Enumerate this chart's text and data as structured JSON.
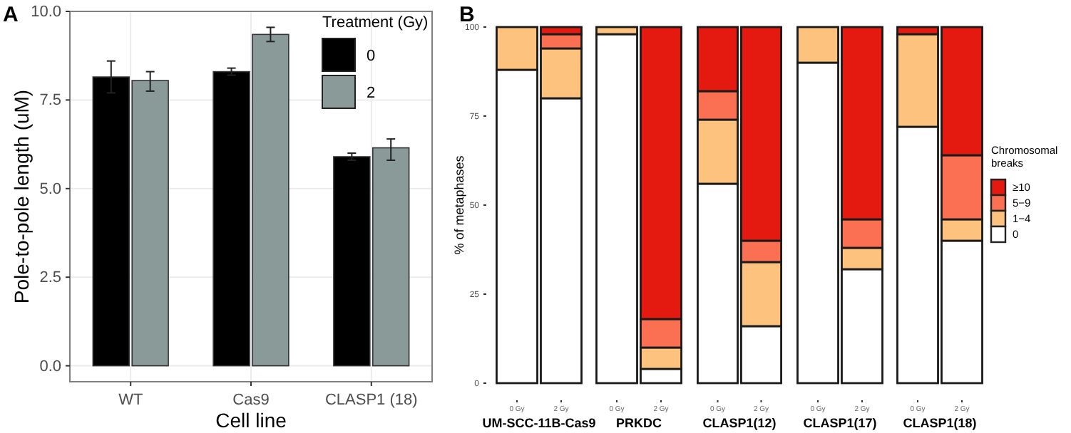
{
  "chart_data": [
    {
      "type": "bar",
      "title": "A",
      "xlabel": "Cell line",
      "ylabel": "Pole-to-pole length (uM)",
      "categories": [
        "WT",
        "Cas9",
        "CLASP1 (18)"
      ],
      "legend_title": "Treatment (Gy)",
      "legend": "top right",
      "grid": true,
      "ylim": [
        -0.45,
        10
      ],
      "yticks": [
        {
          "value": 0,
          "label": "0.0"
        },
        {
          "value": 2.5,
          "label": "2.5"
        },
        {
          "value": 5,
          "label": "5.0"
        },
        {
          "value": 7.5,
          "label": "7.5"
        },
        {
          "value": 10,
          "label": "10.0"
        }
      ],
      "series": [
        {
          "name": "0",
          "color": "#000000",
          "values": [
            8.15,
            8.3,
            5.9
          ],
          "errors": [
            [
              7.7,
              8.6
            ],
            [
              8.2,
              8.4
            ],
            [
              5.8,
              6.0
            ]
          ]
        },
        {
          "name": "2",
          "color": "#8a9a99",
          "values": [
            8.05,
            9.35,
            6.15
          ],
          "errors": [
            [
              7.75,
              8.3
            ],
            [
              9.15,
              9.55
            ],
            [
              5.8,
              6.4
            ]
          ]
        }
      ]
    },
    {
      "type": "bar",
      "title": "B",
      "xlabel": "UM-SCC-11B-Cas9",
      "ylabel": "% of metaphases",
      "categories": [
        "0 Gy",
        "2 Gy"
      ],
      "stacked": true,
      "ylim": [
        0,
        100
      ],
      "yticks": [
        0,
        25,
        50,
        75,
        100
      ],
      "series": [
        {
          "color": "#ffffff",
          "values": [
            88,
            80
          ]
        },
        {
          "color": "#fdc27e",
          "values": [
            12,
            14
          ]
        },
        {
          "color": "#fb6f52",
          "values": [
            0,
            4
          ]
        },
        {
          "color": "#e41a10",
          "values": [
            0,
            2
          ]
        }
      ]
    },
    {
      "type": "bar",
      "xlabel": "PRKDC",
      "categories": [
        "0 Gy",
        "2 Gy"
      ],
      "stacked": true,
      "ylim": [
        0,
        100
      ],
      "tick_labels": "x",
      "series": [
        {
          "color": "#ffffff",
          "values": [
            98,
            4
          ]
        },
        {
          "color": "#fdc27e",
          "values": [
            2,
            6
          ]
        },
        {
          "color": "#fb6f52",
          "values": [
            0,
            8
          ]
        },
        {
          "color": "#e41a10",
          "values": [
            0,
            82
          ]
        }
      ]
    },
    {
      "type": "bar",
      "xlabel": "CLASP1(12)",
      "categories": [
        "0 Gy",
        "2 Gy"
      ],
      "stacked": true,
      "ylim": [
        0,
        100
      ],
      "tick_labels": "x",
      "series": [
        {
          "color": "#ffffff",
          "values": [
            56,
            16
          ]
        },
        {
          "color": "#fdc27e",
          "values": [
            18,
            18
          ]
        },
        {
          "color": "#fb6f52",
          "values": [
            8,
            6
          ]
        },
        {
          "color": "#e41a10",
          "values": [
            18,
            60
          ]
        }
      ]
    },
    {
      "type": "bar",
      "xlabel": "CLASP1(17)",
      "categories": [
        "0 Gy",
        "2 Gy"
      ],
      "stacked": true,
      "ylim": [
        0,
        100
      ],
      "tick_labels": "x",
      "series": [
        {
          "color": "#ffffff",
          "values": [
            90,
            32
          ]
        },
        {
          "color": "#fdc27e",
          "values": [
            10,
            6
          ]
        },
        {
          "color": "#fb6f52",
          "values": [
            0,
            8
          ]
        },
        {
          "color": "#e41a10",
          "values": [
            0,
            54
          ]
        }
      ]
    },
    {
      "type": "bar",
      "xlabel": "CLASP1(18)",
      "categories": [
        "0 Gy",
        "2 Gy"
      ],
      "stacked": true,
      "ylim": [
        0,
        100
      ],
      "tick_labels": "x",
      "legend": "right",
      "legend_title": "Chromosomal breaks",
      "series": [
        {
          "name": "0",
          "color": "#ffffff",
          "values": [
            72,
            40
          ]
        },
        {
          "name": "1−4",
          "color": "#fdc27e",
          "values": [
            26,
            6
          ]
        },
        {
          "name": "5−9",
          "color": "#fb6f52",
          "values": [
            0,
            18
          ]
        },
        {
          "name": "≥10",
          "color": "#e41a10",
          "values": [
            2,
            36
          ]
        }
      ]
    }
  ]
}
